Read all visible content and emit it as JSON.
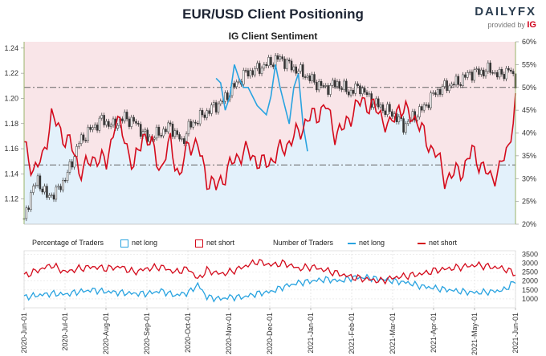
{
  "title": "EUR/USD Client Positioning",
  "subtitle": "IG Client Sentiment",
  "logo": {
    "brand": "DAILYFX",
    "provided_by": "provided by",
    "partner": "IG"
  },
  "colors": {
    "net_long": "#29a3e0",
    "net_short": "#d40b1c",
    "price": "#222222",
    "bg_short": "#fbe3e6",
    "bg_long": "#e3f1fb"
  },
  "legend": {
    "pct_title": "Percentage of Traders",
    "pct_long": "net long",
    "pct_short": "net short",
    "num_title": "Number of Traders",
    "num_long": "net long",
    "num_short": "net short"
  },
  "chart_data": [
    {
      "type": "line",
      "name": "price-sentiment",
      "left_axis_ticks": [
        "1.12",
        "1.14",
        "1.16",
        "1.18",
        "1.20",
        "1.22",
        "1.24"
      ],
      "right_axis_ticks": [
        "20%",
        "25%",
        "30%",
        "35%",
        "40%",
        "45%",
        "50%",
        "55%",
        "60%"
      ],
      "ylim_left": [
        1.1,
        1.245
      ],
      "ylim_right": [
        20,
        60
      ],
      "x_ticks": [
        "2020-Jun-01",
        "2020-Jul-01",
        "2020-Aug-01",
        "2020-Sep-01",
        "2020-Oct-01",
        "2020-Nov-01",
        "2020-Dec-01",
        "2021-Jan-01",
        "2021-Feb-01",
        "2021-Mar-01",
        "2021-Apr-01",
        "2021-May-01",
        "2021-Jun-01"
      ],
      "reference_lines_pct": [
        50,
        33
      ],
      "price_anchors": [
        [
          0,
          1.102
        ],
        [
          3,
          1.125
        ],
        [
          6,
          1.135
        ],
        [
          10,
          1.122
        ],
        [
          14,
          1.125
        ],
        [
          19,
          1.14
        ],
        [
          24,
          1.165
        ],
        [
          29,
          1.175
        ],
        [
          34,
          1.183
        ],
        [
          39,
          1.178
        ],
        [
          44,
          1.185
        ],
        [
          49,
          1.18
        ],
        [
          54,
          1.168
        ],
        [
          59,
          1.172
        ],
        [
          64,
          1.178
        ],
        [
          69,
          1.165
        ],
        [
          72,
          1.177
        ],
        [
          77,
          1.185
        ],
        [
          82,
          1.192
        ],
        [
          87,
          1.198
        ],
        [
          92,
          1.21
        ],
        [
          97,
          1.22
        ],
        [
          102,
          1.223
        ],
        [
          107,
          1.228
        ],
        [
          112,
          1.232
        ],
        [
          117,
          1.225
        ],
        [
          122,
          1.22
        ],
        [
          127,
          1.213
        ],
        [
          132,
          1.208
        ],
        [
          137,
          1.212
        ],
        [
          142,
          1.205
        ],
        [
          147,
          1.209
        ],
        [
          152,
          1.198
        ],
        [
          157,
          1.192
        ],
        [
          162,
          1.187
        ],
        [
          166,
          1.178
        ],
        [
          170,
          1.185
        ],
        [
          175,
          1.193
        ],
        [
          180,
          1.205
        ],
        [
          185,
          1.21
        ],
        [
          190,
          1.213
        ],
        [
          195,
          1.22
        ],
        [
          200,
          1.221
        ],
        [
          204,
          1.223
        ],
        [
          208,
          1.218
        ],
        [
          212,
          1.223
        ],
        [
          215,
          1.214
        ]
      ],
      "short_pct_anchors": [
        [
          0,
          37
        ],
        [
          4,
          32
        ],
        [
          8,
          34
        ],
        [
          12,
          44
        ],
        [
          16,
          40
        ],
        [
          20,
          38
        ],
        [
          24,
          32
        ],
        [
          28,
          33
        ],
        [
          32,
          35
        ],
        [
          36,
          33
        ],
        [
          40,
          43
        ],
        [
          44,
          39
        ],
        [
          48,
          32
        ],
        [
          52,
          40
        ],
        [
          56,
          37
        ],
        [
          60,
          32
        ],
        [
          64,
          38
        ],
        [
          68,
          30
        ],
        [
          72,
          38
        ],
        [
          76,
          37
        ],
        [
          80,
          30
        ],
        [
          84,
          28
        ],
        [
          88,
          31
        ],
        [
          92,
          34
        ],
        [
          96,
          36
        ],
        [
          100,
          35
        ],
        [
          104,
          33
        ],
        [
          108,
          34
        ],
        [
          112,
          36
        ],
        [
          116,
          38
        ],
        [
          120,
          40
        ],
        [
          124,
          43
        ],
        [
          128,
          44
        ],
        [
          132,
          46
        ],
        [
          136,
          40
        ],
        [
          140,
          41
        ],
        [
          144,
          45
        ],
        [
          148,
          47
        ],
        [
          152,
          46
        ],
        [
          156,
          44
        ],
        [
          160,
          41
        ],
        [
          164,
          46
        ],
        [
          168,
          44
        ],
        [
          172,
          43
        ],
        [
          176,
          38
        ],
        [
          180,
          36
        ],
        [
          184,
          30
        ],
        [
          188,
          31
        ],
        [
          192,
          32
        ],
        [
          196,
          36
        ],
        [
          200,
          33
        ],
        [
          204,
          30
        ],
        [
          208,
          32
        ],
        [
          212,
          37
        ],
        [
          215,
          47
        ]
      ],
      "long_pct_anchors": [
        [
          84,
          52
        ],
        [
          86,
          51
        ],
        [
          88,
          45
        ],
        [
          90,
          48
        ],
        [
          92,
          55
        ],
        [
          94,
          52
        ],
        [
          96,
          50
        ],
        [
          98,
          50
        ],
        [
          100,
          48
        ],
        [
          102,
          46
        ],
        [
          104,
          45
        ],
        [
          106,
          44
        ],
        [
          108,
          48
        ],
        [
          110,
          55
        ],
        [
          112,
          50
        ],
        [
          114,
          46
        ],
        [
          116,
          42
        ],
        [
          118,
          50
        ],
        [
          120,
          53
        ],
        [
          122,
          42
        ],
        [
          124,
          36
        ]
      ]
    },
    {
      "type": "line",
      "name": "number-of-traders",
      "right_axis_ticks": [
        "1000",
        "1500",
        "2000",
        "2500",
        "3000",
        "3500"
      ],
      "ylim": [
        500,
        3700
      ],
      "net_short_anchors": [
        [
          0,
          2300
        ],
        [
          6,
          2600
        ],
        [
          12,
          2900
        ],
        [
          18,
          2500
        ],
        [
          24,
          2700
        ],
        [
          30,
          2800
        ],
        [
          36,
          2700
        ],
        [
          42,
          2800
        ],
        [
          48,
          2500
        ],
        [
          54,
          2700
        ],
        [
          60,
          2800
        ],
        [
          66,
          2500
        ],
        [
          72,
          2700
        ],
        [
          76,
          2100
        ],
        [
          80,
          2600
        ],
        [
          86,
          2400
        ],
        [
          90,
          2500
        ],
        [
          96,
          2800
        ],
        [
          102,
          3100
        ],
        [
          108,
          2900
        ],
        [
          114,
          3000
        ],
        [
          120,
          2700
        ],
        [
          126,
          2800
        ],
        [
          132,
          2600
        ],
        [
          138,
          2400
        ],
        [
          144,
          2200
        ],
        [
          150,
          2100
        ],
        [
          156,
          2000
        ],
        [
          162,
          2200
        ],
        [
          168,
          2300
        ],
        [
          174,
          2400
        ],
        [
          180,
          2600
        ],
        [
          186,
          2700
        ],
        [
          192,
          2800
        ],
        [
          198,
          2900
        ],
        [
          204,
          2800
        ],
        [
          210,
          2700
        ],
        [
          215,
          2400
        ]
      ],
      "net_long_anchors": [
        [
          0,
          1100
        ],
        [
          6,
          1200
        ],
        [
          12,
          1300
        ],
        [
          18,
          1250
        ],
        [
          24,
          1400
        ],
        [
          30,
          1500
        ],
        [
          36,
          1400
        ],
        [
          42,
          1350
        ],
        [
          48,
          1300
        ],
        [
          54,
          1300
        ],
        [
          60,
          1450
        ],
        [
          66,
          1200
        ],
        [
          72,
          1350
        ],
        [
          76,
          1800
        ],
        [
          80,
          1100
        ],
        [
          86,
          1000
        ],
        [
          90,
          1100
        ],
        [
          96,
          1100
        ],
        [
          102,
          1300
        ],
        [
          108,
          1400
        ],
        [
          114,
          1700
        ],
        [
          120,
          1900
        ],
        [
          126,
          2000
        ],
        [
          132,
          2100
        ],
        [
          138,
          2000
        ],
        [
          144,
          2200
        ],
        [
          150,
          2200
        ],
        [
          156,
          2100
        ],
        [
          162,
          2000
        ],
        [
          168,
          1900
        ],
        [
          174,
          1700
        ],
        [
          180,
          1600
        ],
        [
          186,
          1500
        ],
        [
          192,
          1400
        ],
        [
          198,
          1350
        ],
        [
          204,
          1400
        ],
        [
          210,
          1500
        ],
        [
          215,
          2000
        ]
      ]
    }
  ]
}
